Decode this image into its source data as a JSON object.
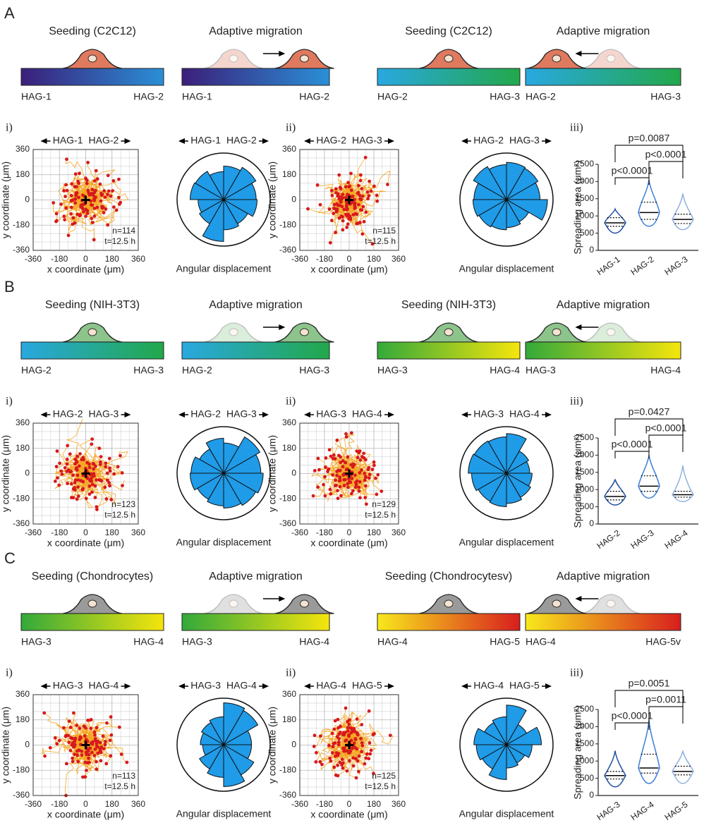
{
  "panels": [
    {
      "letter": "A",
      "cell_color": "#e07a5f",
      "schematics": [
        {
          "title": "Seeding (C2C12)",
          "left": "HAG-1",
          "right": "HAG-2",
          "colors": [
            "#3b1f7a",
            "#2a8fd6"
          ]
        },
        {
          "title": "Adaptive migration",
          "left": "HAG-1",
          "right": "HAG-2",
          "colors": [
            "#3b1f7a",
            "#2a8fd6"
          ]
        },
        {
          "title": "Seeding (C2C12)",
          "left": "HAG-2",
          "right": "HAG-3",
          "colors": [
            "#29a8e0",
            "#22a84a"
          ]
        },
        {
          "title": "Adaptive migration",
          "left": "HAG-2",
          "right": "HAG-3",
          "colors": [
            "#29a8e0",
            "#22a84a"
          ]
        }
      ],
      "tracks": [
        {
          "label": "i)",
          "left": "HAG-1",
          "right": "HAG-2",
          "xlim": [
            -360,
            360
          ],
          "ylim": [
            -360,
            360
          ],
          "xticks": [
            -360,
            -180,
            0,
            180,
            360
          ],
          "yticks": [
            -360,
            -180,
            0,
            180,
            360
          ],
          "xlabel": "x coordinate (μm)",
          "ylabel": "y coordinate (μm)",
          "n": "n=114",
          "t": "t=12.5 h"
        },
        {
          "label": "ii)",
          "left": "HAG-2",
          "right": "HAG-3",
          "xlim": [
            -360,
            360
          ],
          "ylim": [
            -360,
            360
          ],
          "xticks": [
            -360,
            -180,
            0,
            180,
            360
          ],
          "yticks": [
            -360,
            -180,
            0,
            180,
            360
          ],
          "xlabel": "x coordinate (μm)",
          "ylabel": "y coordinate (μm)",
          "n": "n=115",
          "t": "t=12.5 h"
        }
      ],
      "roses": [
        {
          "left": "HAG-1",
          "right": "HAG-2",
          "label": "Angular displacement",
          "color": "#1f9be8",
          "values": [
            0.7,
            0.8,
            0.72,
            0.6,
            0.7,
            0.72,
            0.55,
            0.6,
            0.9,
            0.65,
            0.6,
            0.72
          ]
        },
        {
          "left": "HAG-2",
          "right": "HAG-3",
          "label": "Angular displacement",
          "color": "#1f9be8",
          "values": [
            0.72,
            0.78,
            0.8,
            0.75,
            0.82,
            0.7,
            0.72,
            0.68,
            0.65,
            0.6,
            0.55,
            0.88
          ]
        }
      ],
      "violin": {
        "label": "iii)",
        "ylabel": "Spreading area (μm²)",
        "categories": [
          "HAG-1",
          "HAG-2",
          "HAG-3"
        ],
        "colors": [
          "#1f4fa0",
          "#3b7dd8",
          "#8fb0e0"
        ],
        "ylim": [
          0,
          2500
        ],
        "yticks": [
          0,
          500,
          1000,
          1500,
          2000,
          2500
        ],
        "min": [
          500,
          700,
          600
        ],
        "q1": [
          700,
          900,
          780
        ],
        "medians": [
          800,
          1100,
          900
        ],
        "q3": [
          950,
          1400,
          1050
        ],
        "max": [
          1200,
          2050,
          1650
        ],
        "pvalues": [
          "p=0.0087",
          "p<0.0001",
          "p<0.0001"
        ]
      }
    },
    {
      "letter": "B",
      "cell_color": "#8cc48c",
      "schematics": [
        {
          "title": "Seeding (NIH-3T3)",
          "left": "HAG-2",
          "right": "HAG-3",
          "colors": [
            "#29a8e0",
            "#22a84a"
          ]
        },
        {
          "title": "Adaptive migration",
          "left": "HAG-2",
          "right": "HAG-3",
          "colors": [
            "#29a8e0",
            "#22a84a"
          ]
        },
        {
          "title": "Seeding (NIH-3T3)",
          "left": "HAG-3",
          "right": "HAG-4",
          "colors": [
            "#33a93a",
            "#f5e50c"
          ]
        },
        {
          "title": "Adaptive migration",
          "left": "HAG-3",
          "right": "HAG-4",
          "colors": [
            "#33a93a",
            "#f5e50c"
          ]
        }
      ],
      "tracks": [
        {
          "label": "i)",
          "left": "HAG-2",
          "right": "HAG-3",
          "xlim": [
            -360,
            360
          ],
          "ylim": [
            -360,
            360
          ],
          "xticks": [
            -360,
            -180,
            0,
            180,
            360
          ],
          "yticks": [
            -360,
            -180,
            0,
            180,
            360
          ],
          "xlabel": "x coordinate (μm)",
          "ylabel": "y coordinate (μm)",
          "n": "n=123",
          "t": "t=12.5 h"
        },
        {
          "label": "ii)",
          "left": "HAG-3",
          "right": "HAG-4",
          "xlim": [
            -360,
            360
          ],
          "ylim": [
            -360,
            360
          ],
          "xticks": [
            -360,
            -180,
            0,
            180,
            360
          ],
          "yticks": [
            -360,
            -180,
            0,
            180,
            360
          ],
          "xlabel": "x coordinate (μm)",
          "ylabel": "y coordinate (μm)",
          "n": "n=129",
          "t": "t=12.5 h"
        }
      ],
      "roses": [
        {
          "left": "HAG-2",
          "right": "HAG-3",
          "label": "Angular displacement",
          "color": "#1f9be8",
          "values": [
            0.8,
            0.9,
            0.65,
            0.75,
            0.6,
            0.7,
            0.72,
            0.65,
            0.7,
            0.75,
            0.8,
            0.85
          ]
        },
        {
          "left": "HAG-3",
          "right": "HAG-4",
          "label": "Angular displacement",
          "color": "#1f9be8",
          "values": [
            0.5,
            0.55,
            0.85,
            0.78,
            0.8,
            0.82,
            0.75,
            0.7,
            0.72,
            0.65,
            0.6,
            0.55
          ]
        }
      ],
      "violin": {
        "label": "iii)",
        "ylabel": "Spreading area (μm²)",
        "categories": [
          "HAG-2",
          "HAG-3",
          "HAG-4"
        ],
        "colors": [
          "#1f4fa0",
          "#3b7dd8",
          "#8fb0e0"
        ],
        "ylim": [
          0,
          2500
        ],
        "yticks": [
          0,
          500,
          1000,
          1500,
          2000,
          2500
        ],
        "min": [
          550,
          750,
          650
        ],
        "q1": [
          700,
          950,
          780
        ],
        "medians": [
          800,
          1100,
          850
        ],
        "q3": [
          950,
          1400,
          950
        ],
        "max": [
          1300,
          2000,
          1700
        ],
        "pvalues": [
          "p=0.0427",
          "p<0.0001",
          "p<0.0001"
        ]
      }
    },
    {
      "letter": "C",
      "cell_color": "#9a9a9a",
      "schematics": [
        {
          "title": "Seeding (Chondrocytes)",
          "left": "HAG-3",
          "right": "HAG-4",
          "colors": [
            "#33a93a",
            "#f5e50c"
          ]
        },
        {
          "title": "Adaptive migration",
          "left": "HAG-3",
          "right": "HAG-4",
          "colors": [
            "#33a93a",
            "#f5e50c"
          ]
        },
        {
          "title": "Seeding (Chondrocytesv)",
          "left": "HAG-4",
          "right": "HAG-5",
          "colors": [
            "#f8e81c",
            "#d81e1e"
          ]
        },
        {
          "title": "Adaptive migration",
          "left": "HAG-4",
          "right": "HAG-5v",
          "colors": [
            "#f8e81c",
            "#d81e1e"
          ]
        }
      ],
      "tracks": [
        {
          "label": "i)",
          "left": "HAG-3",
          "right": "HAG-4",
          "xlim": [
            -360,
            360
          ],
          "ylim": [
            -360,
            360
          ],
          "xticks": [
            -360,
            -180,
            0,
            180,
            360
          ],
          "yticks": [
            -360,
            -180,
            0,
            180,
            360
          ],
          "xlabel": "x coordinate (μm)",
          "ylabel": "y coordinate (μm)",
          "n": "n=113",
          "t": "t=12.5 h"
        },
        {
          "label": "ii)",
          "left": "HAG-4",
          "right": "HAG-5",
          "xlim": [
            -360,
            360
          ],
          "ylim": [
            -360,
            360
          ],
          "xticks": [
            -360,
            -180,
            0,
            180,
            360
          ],
          "yticks": [
            -360,
            -180,
            0,
            180,
            360
          ],
          "xlabel": "x coordinate (μm)",
          "ylabel": "y coordinate (μm)",
          "n": "n=125",
          "t": "t=12.5 h"
        }
      ],
      "roses": [
        {
          "left": "HAG-3",
          "right": "HAG-4",
          "label": "Angular displacement",
          "color": "#1f9be8",
          "values": [
            0.6,
            0.85,
            0.9,
            0.6,
            0.55,
            0.5,
            0.45,
            0.6,
            0.7,
            0.9,
            0.75,
            0.6
          ]
        },
        {
          "left": "HAG-4",
          "right": "HAG-5",
          "label": "Angular displacement",
          "color": "#1f9be8",
          "values": [
            0.75,
            0.5,
            0.85,
            0.6,
            0.55,
            0.7,
            0.65,
            0.6,
            0.75,
            0.5,
            0.45,
            0.55
          ]
        }
      ],
      "violin": {
        "label": "iii)",
        "ylabel": "Spreading area (μm²)",
        "categories": [
          "HAG-3",
          "HAG-4",
          "HAG-5"
        ],
        "colors": [
          "#1f4fa0",
          "#3b7dd8",
          "#8fb0e0"
        ],
        "ylim": [
          0,
          2500
        ],
        "yticks": [
          0,
          500,
          1000,
          1500,
          2000,
          2500
        ],
        "min": [
          250,
          350,
          350
        ],
        "q1": [
          480,
          650,
          600
        ],
        "medians": [
          580,
          800,
          700
        ],
        "q3": [
          700,
          1200,
          850
        ],
        "max": [
          1300,
          2200,
          1300
        ],
        "pvalues": [
          "p=0.0051",
          "p=0.0011",
          "p<0.0001"
        ]
      }
    }
  ]
}
